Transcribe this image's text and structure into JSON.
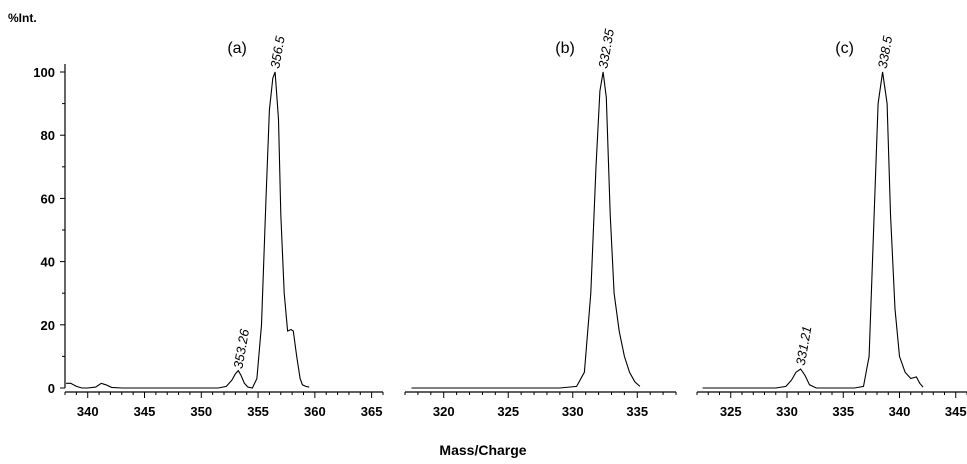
{
  "chart_data": {
    "type": "line",
    "ylabel": "%Int.",
    "xlabel": "Mass/Charge",
    "ylim": [
      0,
      100
    ],
    "yticks": [
      0,
      20,
      40,
      60,
      80,
      100
    ],
    "y_tick_labels": [
      "0",
      "20",
      "40",
      "60",
      "80",
      "100"
    ],
    "panels": [
      {
        "label": "(a)",
        "xlim": [
          338,
          366
        ],
        "xticks": [
          340,
          345,
          350,
          355,
          360,
          365
        ],
        "x_tick_labels": [
          "340",
          "345",
          "350",
          "355",
          "360",
          "365"
        ],
        "peak_labels": [
          {
            "x": 356.5,
            "y": 100,
            "text": "356.5"
          },
          {
            "x": 353.26,
            "y": 5,
            "text": "353.26"
          }
        ],
        "series": [
          {
            "x": [
              338.1,
              338.5,
              339.0,
              339.5,
              340.0,
              340.7,
              341.2,
              341.6,
              342.1,
              343.0,
              345,
              347,
              349,
              350.5,
              351.5,
              352.2,
              352.7,
              353.0,
              353.26,
              353.5,
              353.8,
              354.1,
              354.5,
              354.9,
              355.3,
              355.7,
              356.0,
              356.3,
              356.5,
              356.8,
              357.0,
              357.3,
              357.6,
              357.9,
              358.1,
              358.4,
              358.7,
              358.9,
              359.2,
              359.5
            ],
            "y": [
              1.5,
              1.5,
              0.5,
              0,
              0,
              0.3,
              1.5,
              1.0,
              0.2,
              0,
              0,
              0,
              0,
              0,
              0,
              0.5,
              2.5,
              4.5,
              5.5,
              4.0,
              1.5,
              0.3,
              0,
              3,
              20,
              60,
              88,
              98,
              100,
              85,
              55,
              30,
              18,
              18.5,
              18,
              10,
              3,
              1,
              0.5,
              0.3
            ]
          }
        ]
      },
      {
        "label": "(b)",
        "xlim": [
          317,
          338
        ],
        "xticks": [
          320,
          325,
          330,
          335
        ],
        "x_tick_labels": [
          "320",
          "325",
          "330",
          "335"
        ],
        "peak_labels": [
          {
            "x": 332.35,
            "y": 100,
            "text": "332.35"
          }
        ],
        "series": [
          {
            "x": [
              317.5,
              320,
              323,
              326,
              329,
              330.3,
              330.9,
              331.4,
              331.8,
              332.1,
              332.35,
              332.6,
              332.9,
              333.2,
              333.6,
              334.0,
              334.4,
              334.8,
              335.2
            ],
            "y": [
              0,
              0,
              0,
              0,
              0,
              0.5,
              5,
              30,
              70,
              94,
              100,
              92,
              55,
              30,
              18,
              10,
              5,
              2,
              0.5
            ]
          }
        ]
      },
      {
        "label": "(c)",
        "xlim": [
          322,
          346
        ],
        "xticks": [
          325,
          330,
          335,
          340,
          345
        ],
        "x_tick_labels": [
          "325",
          "330",
          "335",
          "340",
          "345"
        ],
        "peak_labels": [
          {
            "x": 338.5,
            "y": 100,
            "text": "338.5"
          },
          {
            "x": 331.21,
            "y": 6,
            "text": "331.21"
          }
        ],
        "series": [
          {
            "x": [
              322.5,
              326,
              329,
              329.9,
              330.4,
              330.8,
              331.21,
              331.6,
              332.0,
              332.6,
              334,
              336,
              336.8,
              337.3,
              337.7,
              338.1,
              338.5,
              338.9,
              339.2,
              339.6,
              340.0,
              340.5,
              341.0,
              341.5,
              341.8,
              342.1
            ],
            "y": [
              0,
              0,
              0,
              0.5,
              2.5,
              5,
              6,
              4,
              1,
              0,
              0,
              0,
              0.5,
              10,
              50,
              90,
              100,
              90,
              55,
              25,
              10,
              5,
              3,
              3.5,
              1.5,
              0.3
            ]
          }
        ]
      }
    ]
  }
}
